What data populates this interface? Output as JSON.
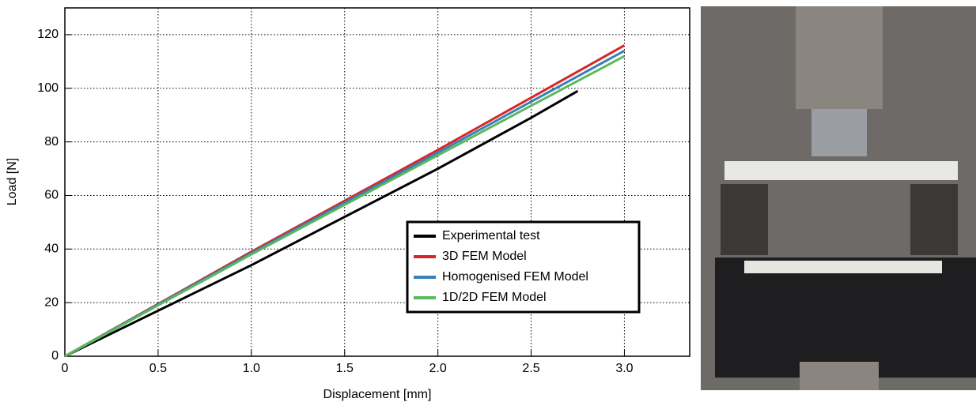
{
  "chart_data": {
    "type": "line",
    "xlabel": "Displacement [mm]",
    "ylabel": "Load [N]",
    "x": [
      0,
      0.5,
      1,
      1.5,
      2,
      2.5,
      2.75,
      3
    ],
    "series": [
      {
        "name": "Experimental test",
        "color": "#000000",
        "values": [
          0,
          17,
          34,
          52,
          70,
          89,
          99,
          null
        ]
      },
      {
        "name": "3D FEM Model",
        "color": "#d62728",
        "values": [
          0,
          19.5,
          39,
          58,
          77,
          96.5,
          106.25,
          116
        ]
      },
      {
        "name": "Homogenised FEM Model",
        "color": "#3a7fb8",
        "values": [
          0,
          19.3,
          38.5,
          57.3,
          76,
          95,
          104.5,
          114
        ]
      },
      {
        "name": "1D/2D FEM Model",
        "color": "#5cb85c",
        "values": [
          0,
          19,
          38,
          56.5,
          75,
          93.5,
          102.75,
          112
        ]
      }
    ],
    "xlim": [
      0,
      3.35
    ],
    "ylim": [
      0,
      130
    ],
    "xticks": [
      0,
      0.5,
      {
        "value": 1,
        "label": "1.0"
      },
      1.5,
      {
        "value": 2,
        "label": "2.0"
      },
      2.5,
      {
        "value": 3,
        "label": "3.0"
      }
    ],
    "yticks": [
      0,
      20,
      40,
      60,
      80,
      100,
      120
    ],
    "grid": true,
    "legend": "lower right"
  }
}
